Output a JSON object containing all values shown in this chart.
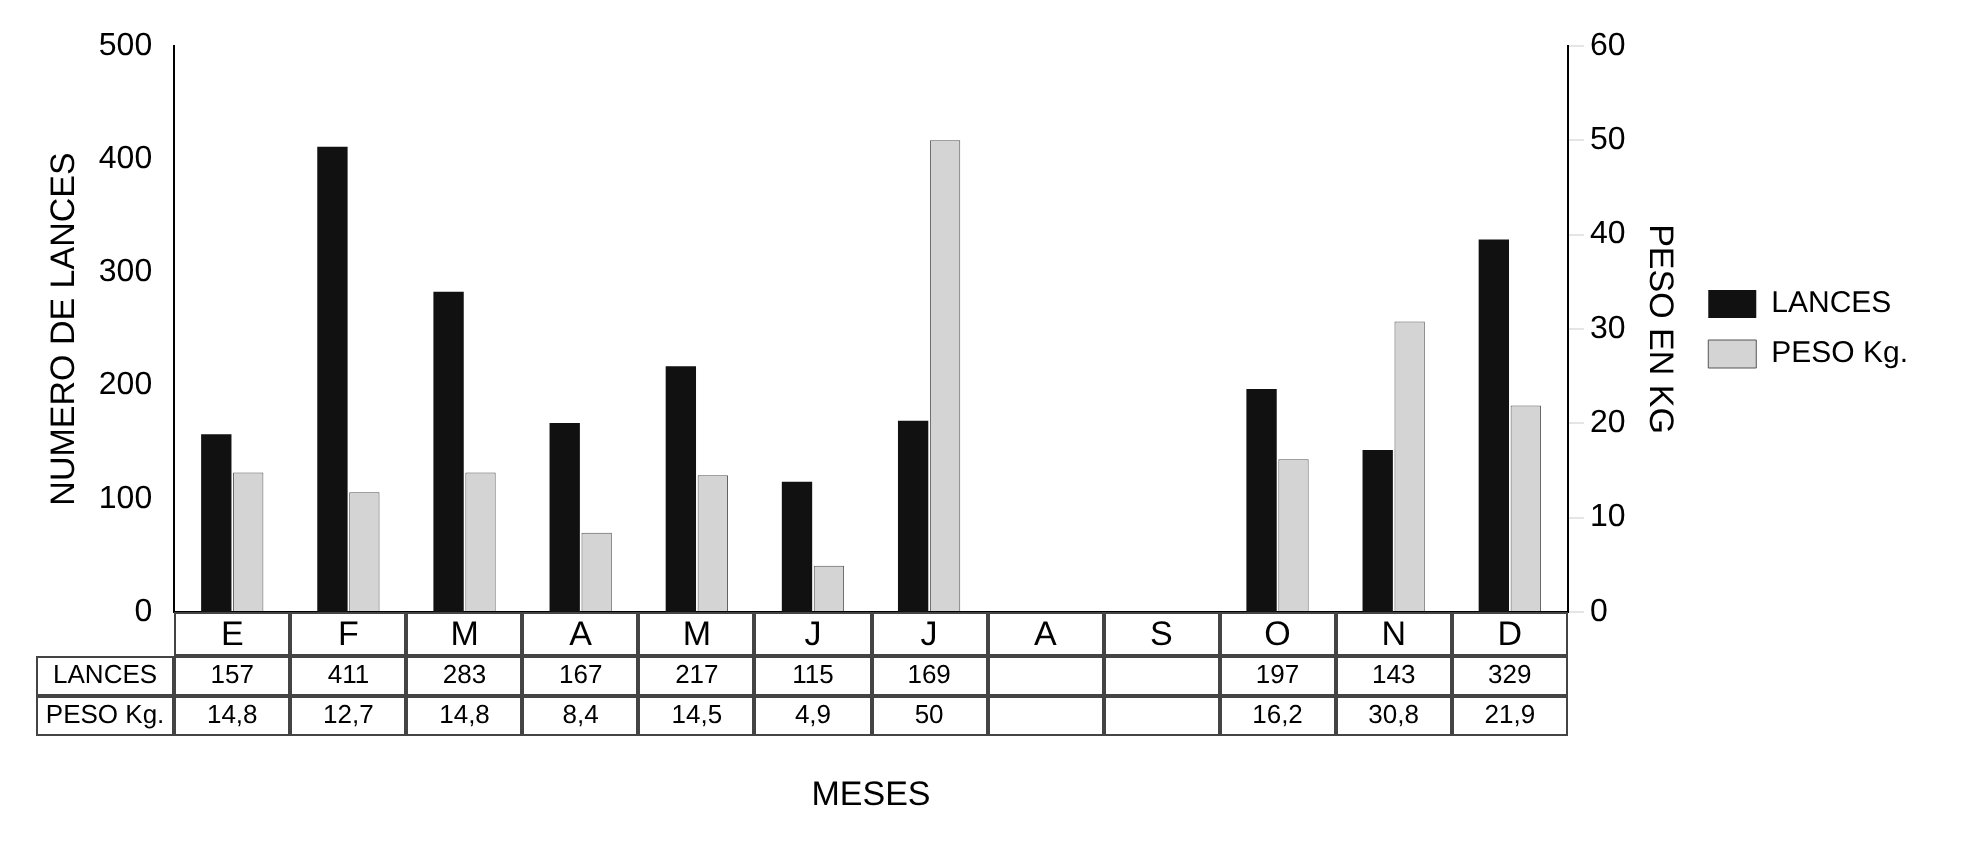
{
  "chart_data": {
    "type": "bar",
    "xlabel": "MESES",
    "ylabel": "NUMERO DE LANCES",
    "y2label": "PESO EN KG",
    "categories": [
      "E",
      "F",
      "M",
      "A",
      "M",
      "J",
      "J",
      "A",
      "S",
      "O",
      "N",
      "D"
    ],
    "series": [
      {
        "name": "LANCES",
        "color": "#111111",
        "values": [
          157,
          411,
          283,
          167,
          217,
          115,
          169,
          null,
          null,
          197,
          143,
          329
        ],
        "value_labels": [
          "157",
          "411",
          "283",
          "167",
          "217",
          "115",
          "169",
          null,
          null,
          "197",
          "143",
          "329"
        ]
      },
      {
        "name": "PESO Kg.",
        "color": "#d4d4d4",
        "axis": "y2",
        "values": [
          14.8,
          12.7,
          14.8,
          8.4,
          14.5,
          4.9,
          50,
          null,
          null,
          16.2,
          30.8,
          21.9
        ],
        "value_labels": [
          "14,8",
          "12,7",
          "14,8",
          "8,4",
          "14,5",
          "4,9",
          "50",
          null,
          null,
          "16,2",
          "30,8",
          "21,9"
        ]
      }
    ],
    "ylim": [
      0,
      500
    ],
    "yticks": [
      0,
      100,
      200,
      300,
      400,
      500
    ],
    "y2lim": [
      0,
      60
    ],
    "y2ticks": [
      0,
      10,
      20,
      30,
      40,
      50,
      60
    ],
    "grid": false,
    "legend": "right"
  }
}
